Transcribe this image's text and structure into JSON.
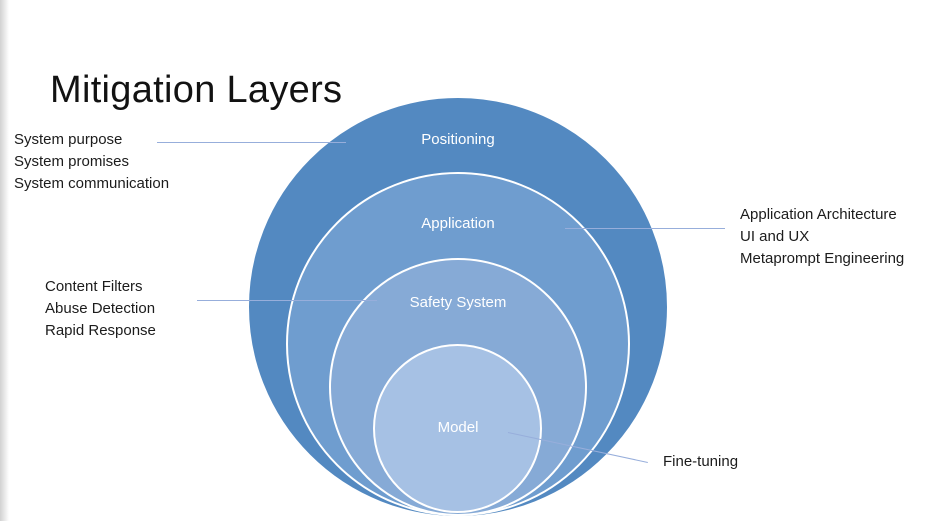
{
  "slide": {
    "title": "Mitigation Layers"
  },
  "diagram": {
    "type": "nested-circles",
    "layers": [
      {
        "label": "Positioning",
        "color": "#5389c1"
      },
      {
        "label": "Application",
        "color": "#6f9dcf"
      },
      {
        "label": "Safety System",
        "color": "#86aad6"
      },
      {
        "label": "Model",
        "color": "#a6c1e4"
      }
    ]
  },
  "annotations": [
    {
      "target": "Positioning",
      "side": "left",
      "lines": [
        "System purpose",
        "System promises",
        "System communication"
      ]
    },
    {
      "target": "Application",
      "side": "right",
      "lines": [
        "Application Architecture",
        "UI and UX",
        "Metaprompt Engineering"
      ]
    },
    {
      "target": "Safety System",
      "side": "left",
      "lines": [
        "Content Filters",
        "Abuse Detection",
        "Rapid Response"
      ]
    },
    {
      "target": "Model",
      "side": "right",
      "lines": [
        "Fine-tuning"
      ]
    }
  ],
  "colors": {
    "connector": "#97aedb",
    "layer_label_text": "#ffffff",
    "body_text": "#1c1c1c",
    "background": "#ffffff"
  }
}
